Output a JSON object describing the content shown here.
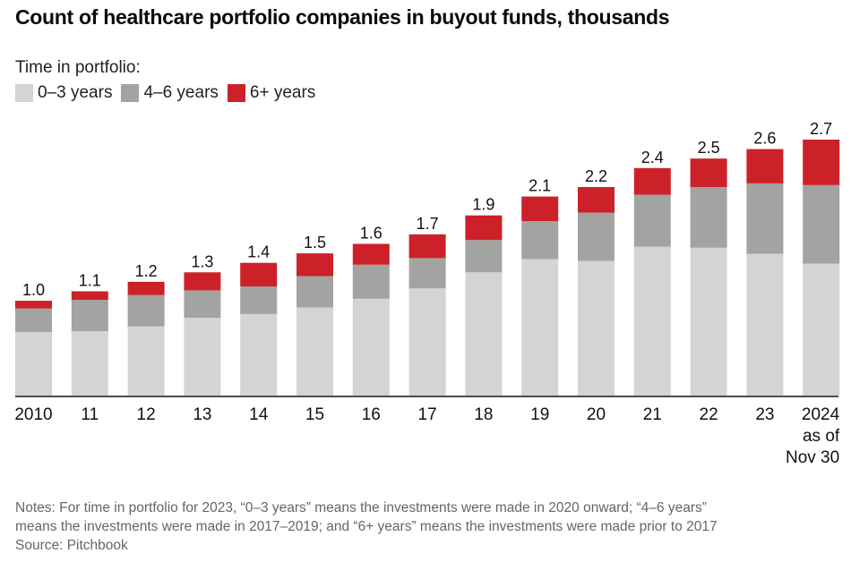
{
  "chart_data": {
    "type": "bar",
    "stacked": true,
    "title": "Count of healthcare portfolio companies in buyout funds, thousands",
    "legend_title": "Time in portfolio:",
    "legend_position": "top-left",
    "xlabel": "",
    "ylabel": "",
    "ylim": [
      0,
      2.7
    ],
    "grid": false,
    "categories": [
      "2010",
      "11",
      "12",
      "13",
      "14",
      "15",
      "16",
      "17",
      "18",
      "19",
      "20",
      "21",
      "22",
      "23",
      "2024 as of Nov 30"
    ],
    "category_lines": [
      [
        "2010"
      ],
      [
        "11"
      ],
      [
        "12"
      ],
      [
        "13"
      ],
      [
        "14"
      ],
      [
        "15"
      ],
      [
        "16"
      ],
      [
        "17"
      ],
      [
        "18"
      ],
      [
        "19"
      ],
      [
        "20"
      ],
      [
        "21"
      ],
      [
        "22"
      ],
      [
        "23"
      ],
      [
        "2024",
        "as of",
        "Nov 30"
      ]
    ],
    "totals": [
      1.0,
      1.1,
      1.2,
      1.3,
      1.4,
      1.5,
      1.6,
      1.7,
      1.9,
      2.1,
      2.2,
      2.4,
      2.5,
      2.6,
      2.7
    ],
    "total_labels": [
      "1.0",
      "1.1",
      "1.2",
      "1.3",
      "1.4",
      "1.5",
      "1.6",
      "1.7",
      "1.9",
      "2.1",
      "2.2",
      "2.4",
      "2.5",
      "2.6",
      "2.7"
    ],
    "series": [
      {
        "name": "0–3 years",
        "color": "#d4d4d4",
        "values": [
          0.67,
          0.68,
          0.73,
          0.82,
          0.86,
          0.93,
          1.02,
          1.13,
          1.3,
          1.44,
          1.42,
          1.57,
          1.56,
          1.53,
          1.39
        ]
      },
      {
        "name": "4–6 years",
        "color": "#a3a3a2",
        "values": [
          0.25,
          0.33,
          0.33,
          0.29,
          0.29,
          0.33,
          0.36,
          0.32,
          0.34,
          0.4,
          0.51,
          0.55,
          0.64,
          0.76,
          0.83
        ]
      },
      {
        "name": "6+ years",
        "color": "#cc2128",
        "values": [
          0.08,
          0.09,
          0.14,
          0.19,
          0.25,
          0.24,
          0.22,
          0.25,
          0.26,
          0.26,
          0.27,
          0.28,
          0.3,
          0.37,
          0.48
        ]
      }
    ]
  },
  "notes": {
    "line1": "Notes: For time in portfolio for 2023, “0–3 years” means the investments were made in 2020 onward; “4–6 years”",
    "line2": "means the investments were made in 2017–2019; and “6+ years” means the investments were made prior to 2017",
    "source": "Source: Pitchbook"
  }
}
